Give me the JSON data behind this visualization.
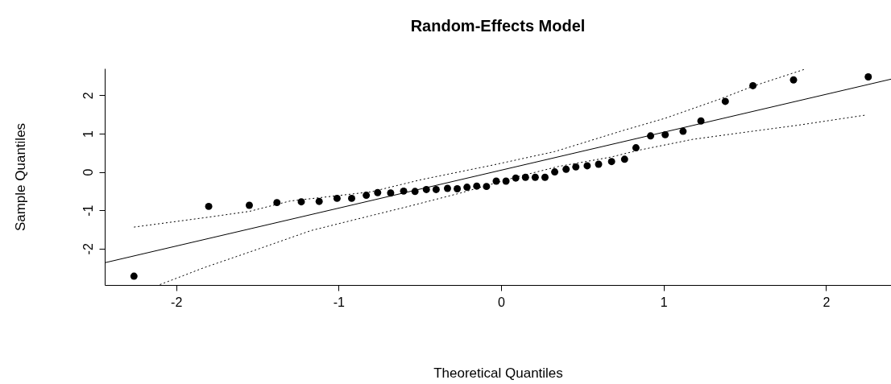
{
  "chart_data": {
    "type": "scatter",
    "title": "Random-Effects Model",
    "xlabel": "Theoretical Quantiles",
    "ylabel": "Sample Quantiles",
    "xlim": [
      -2.44,
      2.4
    ],
    "ylim": [
      -2.95,
      2.7
    ],
    "xticks": [
      -2,
      -1,
      0,
      1,
      2
    ],
    "yticks": [
      -2,
      -1,
      0,
      1,
      2
    ],
    "grid": false,
    "series": [
      {
        "color": "#000000",
        "marker": "circle",
        "x": [
          -2.26,
          -1.8,
          -1.55,
          -1.38,
          -1.23,
          -1.12,
          -1.01,
          -0.92,
          -0.83,
          -0.76,
          -0.68,
          -0.6,
          -0.53,
          -0.46,
          -0.4,
          -0.33,
          -0.27,
          -0.21,
          -0.15,
          -0.09,
          -0.03,
          0.03,
          0.09,
          0.15,
          0.21,
          0.27,
          0.33,
          0.4,
          0.46,
          0.53,
          0.6,
          0.68,
          0.76,
          0.83,
          0.92,
          1.01,
          1.12,
          1.23,
          1.38,
          1.55,
          1.8,
          2.26
        ],
        "values": [
          -2.72,
          -0.9,
          -0.87,
          -0.8,
          -0.78,
          -0.77,
          -0.69,
          -0.69,
          -0.61,
          -0.54,
          -0.55,
          -0.5,
          -0.51,
          -0.46,
          -0.46,
          -0.43,
          -0.44,
          -0.4,
          -0.37,
          -0.38,
          -0.24,
          -0.24,
          -0.16,
          -0.14,
          -0.14,
          -0.14,
          0.0,
          0.07,
          0.13,
          0.16,
          0.2,
          0.27,
          0.33,
          0.63,
          0.94,
          0.97,
          1.06,
          1.33,
          1.84,
          2.25,
          2.4,
          2.48
        ]
      },
      {
        "type": "line",
        "color": "#000000",
        "line_style": "solid",
        "x": [
          -2.44,
          2.4
        ],
        "values": [
          -2.37,
          2.42
        ]
      },
      {
        "type": "line",
        "color": "#000000",
        "line_style": "dotted",
        "x": [
          -2.26,
          -1.8,
          -1.55,
          -1.3,
          -0.8,
          -0.49,
          -0.05,
          0.33,
          0.75,
          1.01,
          1.34,
          1.56,
          1.87
        ],
        "values": [
          -1.44,
          -1.18,
          -1.03,
          -0.76,
          -0.52,
          -0.2,
          0.18,
          0.53,
          1.08,
          1.4,
          1.89,
          2.25,
          2.68
        ]
      },
      {
        "type": "line",
        "color": "#000000",
        "line_style": "dotted",
        "x": [
          -2.1,
          -1.83,
          -1.5,
          -1.17,
          -0.8,
          -0.57,
          -0.25,
          0.09,
          0.35,
          0.68,
          0.84,
          1.18,
          1.51,
          1.83,
          2.24
        ],
        "values": [
          -2.94,
          -2.5,
          -2.02,
          -1.53,
          -1.14,
          -0.9,
          -0.55,
          -0.14,
          0.14,
          0.39,
          0.56,
          0.85,
          1.04,
          1.22,
          1.48
        ]
      }
    ]
  }
}
